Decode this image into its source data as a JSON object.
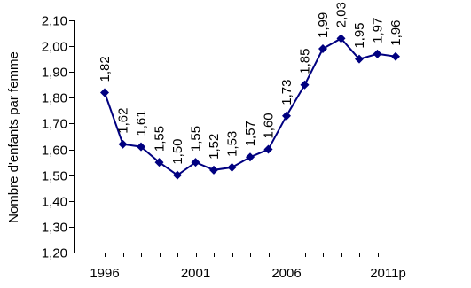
{
  "chart_data": {
    "type": "line",
    "title": "",
    "ylabel": "Nombre d'enfants par femme",
    "xlabel": "",
    "ylim": [
      1.2,
      2.1
    ],
    "y_ticks": [
      1.2,
      1.3,
      1.4,
      1.5,
      1.6,
      1.7,
      1.8,
      1.9,
      2.0,
      2.1
    ],
    "y_tick_labels": [
      "1,20",
      "1,30",
      "1,40",
      "1,50",
      "1,60",
      "1,70",
      "1,80",
      "1,90",
      "2,00",
      "2,10"
    ],
    "x_tick_labels": [
      "1996",
      "2001",
      "2006",
      "2011p"
    ],
    "x": [
      1996,
      1997,
      1998,
      1999,
      2000,
      2001,
      2002,
      2003,
      2004,
      2005,
      2006,
      2007,
      2008,
      2009,
      2010,
      2011,
      2012
    ],
    "values": [
      1.82,
      1.62,
      1.61,
      1.55,
      1.5,
      1.55,
      1.52,
      1.53,
      1.57,
      1.6,
      1.73,
      1.85,
      1.99,
      2.03,
      1.95,
      1.97,
      1.96
    ],
    "data_labels": [
      "1,82",
      "1,62",
      "1,61",
      "1,55",
      "1,50",
      "1,55",
      "1,52",
      "1,53",
      "1,57",
      "1,60",
      "1,73",
      "1,85",
      "1,99",
      "2,03",
      "1,95",
      "1,97",
      "1,96"
    ],
    "grid": false,
    "legend": "none",
    "color": "#000080"
  }
}
